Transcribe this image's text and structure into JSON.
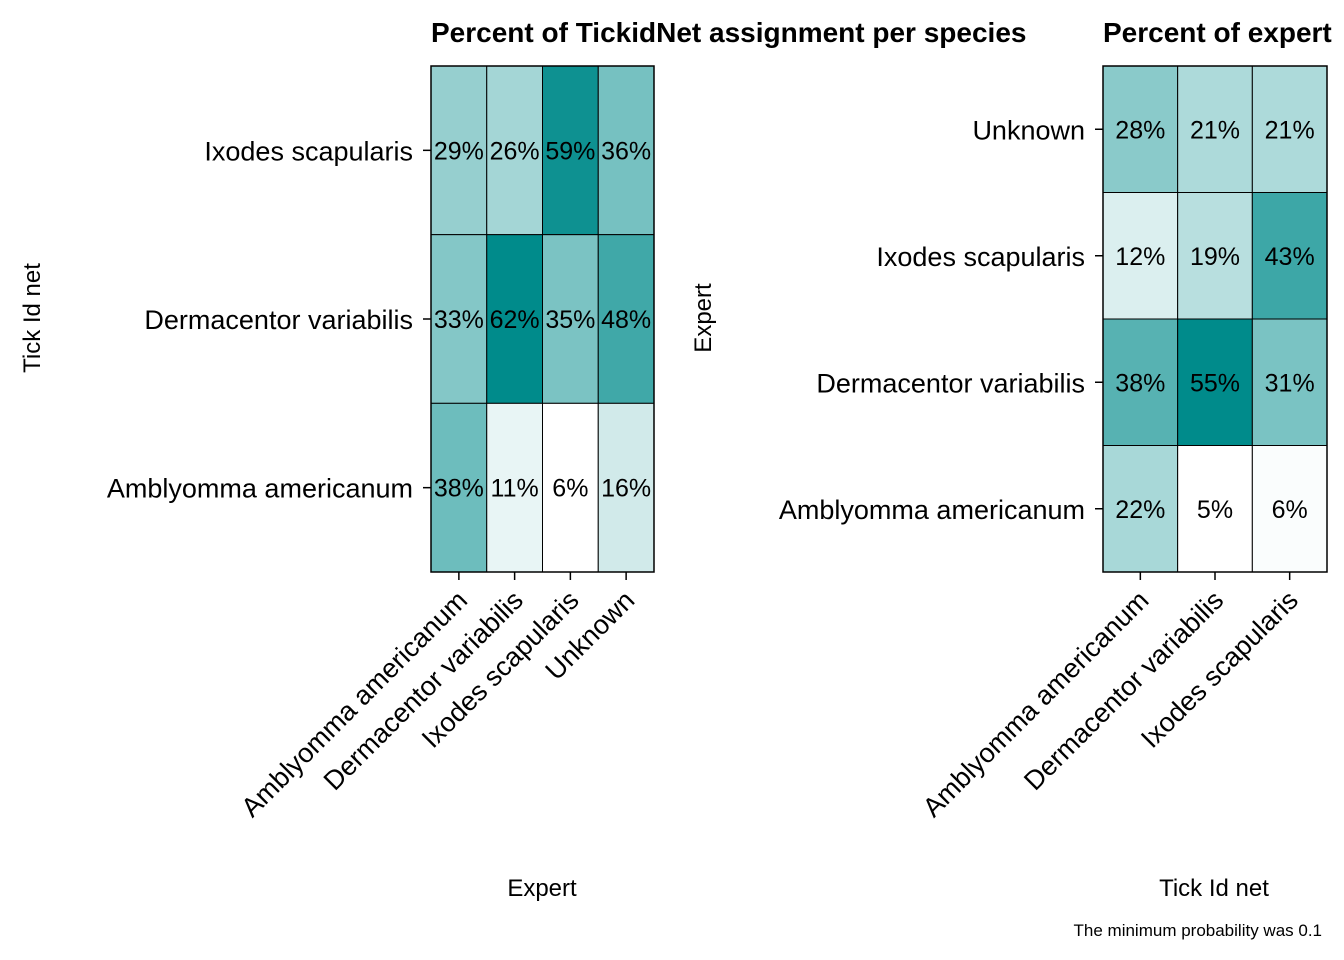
{
  "caption": "The minimum probability was 0.1",
  "colors": {
    "low": "#ffffff",
    "high": "#008b8b",
    "border": "#000000"
  },
  "chart_data": [
    {
      "type": "heatmap",
      "title": "Percent of TickidNet assignment per species",
      "xlabel": "Expert",
      "ylabel": "Tick Id net",
      "x_categories": [
        "Amblyomma americanum",
        "Dermacentor variabilis",
        "Ixodes scapularis",
        "Unknown"
      ],
      "y_categories": [
        "Ixodes scapularis",
        "Dermacentor variabilis",
        "Amblyomma americanum"
      ],
      "values": [
        [
          29,
          26,
          59,
          36
        ],
        [
          33,
          62,
          35,
          48
        ],
        [
          38,
          11,
          6,
          16
        ]
      ],
      "labels": [
        [
          "29%",
          "26%",
          "59%",
          "36%"
        ],
        [
          "33%",
          "62%",
          "35%",
          "48%"
        ],
        [
          "38%",
          "11%",
          "6%",
          "16%"
        ]
      ]
    },
    {
      "type": "heatmap",
      "title": "Percent of expert",
      "xlabel": "Tick Id net",
      "ylabel": "Expert",
      "x_categories": [
        "Amblyomma americanum",
        "Dermacentor variabilis",
        "Ixodes scapularis"
      ],
      "y_categories": [
        "Unknown",
        "Ixodes scapularis",
        "Dermacentor variabilis",
        "Amblyomma americanum"
      ],
      "values": [
        [
          28,
          21,
          21
        ],
        [
          12,
          19,
          43
        ],
        [
          38,
          55,
          31
        ],
        [
          22,
          5,
          6
        ]
      ],
      "labels": [
        [
          "28%",
          "21%",
          "21%"
        ],
        [
          "12%",
          "19%",
          "43%"
        ],
        [
          "38%",
          "55%",
          "31%"
        ],
        [
          "22%",
          "5%",
          "6%"
        ]
      ]
    }
  ]
}
